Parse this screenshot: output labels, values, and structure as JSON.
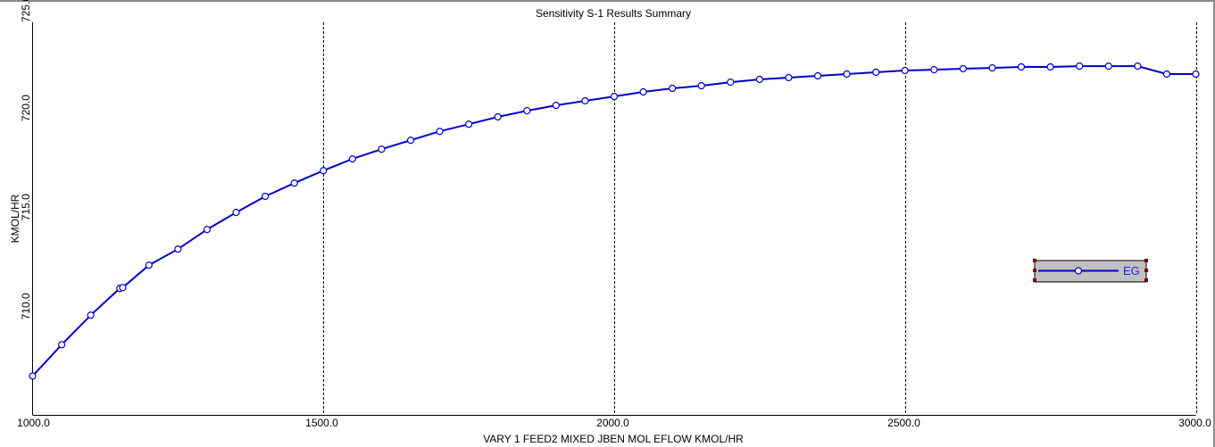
{
  "chart_data": {
    "type": "line",
    "title": "Sensitivity S-1 Results Summary",
    "xlabel": "VARY   1 FEED2 MIXED JBEN MOL EFLOW  KMOL/HR",
    "ylabel": "KMOL/HR",
    "xlim": [
      1000,
      3000
    ],
    "ylim": [
      705.2,
      725
    ],
    "xticks": [
      1000,
      1500,
      2000,
      2500,
      3000
    ],
    "xtick_labels": [
      "1000.0",
      "1500.0",
      "2000.0",
      "2500.0",
      "3000.0"
    ],
    "yticks": [
      710,
      715,
      720,
      725
    ],
    "ytick_labels": [
      "710.0",
      "715.0",
      "720.0",
      "725.0"
    ],
    "grid": "vertical dashed at x ticks",
    "legend_position": "right",
    "colors": {
      "series": "#0000cc",
      "legend_bg": "#c0c0c0",
      "handle": "#800000"
    },
    "series": [
      {
        "name": "EG",
        "x": [
          1000,
          1050,
          1100,
          1150,
          1155,
          1200,
          1250,
          1300,
          1350,
          1400,
          1450,
          1500,
          1550,
          1600,
          1650,
          1700,
          1750,
          1800,
          1850,
          1900,
          1950,
          2000,
          2050,
          2100,
          2150,
          2200,
          2250,
          2300,
          2350,
          2400,
          2450,
          2500,
          2550,
          2600,
          2650,
          2700,
          2750,
          2800,
          2850,
          2900,
          2950,
          3000
        ],
        "y": [
          707.16,
          708.74,
          710.23,
          711.58,
          711.62,
          712.75,
          713.56,
          714.55,
          715.41,
          716.22,
          716.89,
          717.52,
          718.11,
          718.6,
          719.05,
          719.5,
          719.86,
          720.23,
          720.54,
          720.81,
          721.04,
          721.26,
          721.49,
          721.67,
          721.8,
          721.98,
          722.12,
          722.21,
          722.3,
          722.39,
          722.48,
          722.57,
          722.61,
          722.66,
          722.7,
          722.75,
          722.75,
          722.79,
          722.79,
          722.79,
          722.39,
          722.39
        ]
      }
    ]
  }
}
